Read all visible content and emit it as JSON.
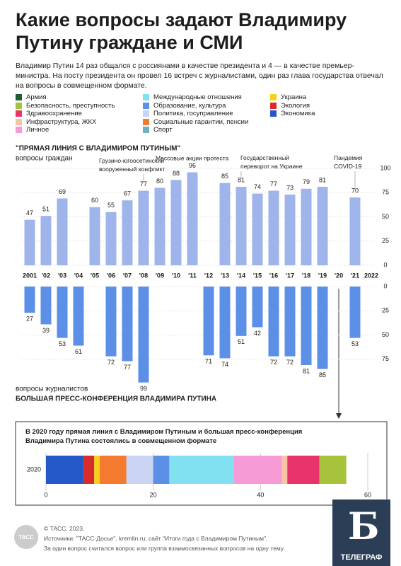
{
  "header": {
    "title": "Какие вопросы задают Владимиру Путину граждане и СМИ",
    "intro": "Владимир Путин 14 раз общался с россиянами в качестве президента и 4 — в качестве премьер-министра. На посту президента он провел 16 встреч с журналистами, один раз глава государства отвечал на вопросы в совмещенном формате."
  },
  "legend": [
    {
      "label": "Армия",
      "color": "#1b5e32"
    },
    {
      "label": "Безопасность, преступность",
      "color": "#a6c33b"
    },
    {
      "label": "Здравоохранение",
      "color": "#e8336b"
    },
    {
      "label": "Инфраструктура, ЖКХ",
      "color": "#f8c4a6"
    },
    {
      "label": "Личное",
      "color": "#f79bd6"
    },
    {
      "label": "Международные отношения",
      "color": "#82e1f0"
    },
    {
      "label": "Образование, культура",
      "color": "#5c8fe6"
    },
    {
      "label": "Политика, госуправление",
      "color": "#cbd4f3"
    },
    {
      "label": "Социальные гарантии, пенсии",
      "color": "#f47a30"
    },
    {
      "label": "Спорт",
      "color": "#6cb3c2"
    },
    {
      "label": "Украина",
      "color": "#f5d21a"
    },
    {
      "label": "Экология",
      "color": "#d72c2c"
    },
    {
      "label": "Экономика",
      "color": "#2458c8"
    }
  ],
  "chart_data": [
    {
      "type": "bar",
      "title": "\"ПРЯМАЯ ЛИНИЯ С ВЛАДИМИРОМ ПУТИНЫМ\"",
      "subtitle": "вопросы граждан",
      "categories": [
        "2001",
        "'02",
        "'03",
        "'04",
        "'05",
        "'06",
        "'07",
        "'08",
        "'09",
        "'10",
        "'11",
        "'12",
        "'13",
        "'14",
        "'15",
        "'16",
        "'17",
        "'18",
        "'19",
        "'20",
        "'21",
        "2022"
      ],
      "values": [
        47,
        51,
        69,
        null,
        60,
        55,
        67,
        77,
        80,
        88,
        96,
        null,
        85,
        81,
        74,
        77,
        73,
        79,
        81,
        null,
        70,
        null
      ],
      "color": "#9fb4ea",
      "ylim": [
        0,
        100
      ],
      "yticks": [
        0,
        25,
        50,
        75,
        100
      ],
      "annotations": [
        "Грузино-югоосетинский вооруженный конфликт",
        "Массовые акции протеста",
        "Государственный переворот на Украине",
        "Пандемия COVID-19"
      ]
    },
    {
      "type": "bar",
      "title": "БОЛЬШАЯ ПРЕСС-КОНФЕРЕНЦИЯ ВЛАДИМИРА ПУТИНА",
      "subtitle": "вопросы журналистов",
      "values": [
        27,
        39,
        53,
        61,
        null,
        72,
        77,
        99,
        null,
        null,
        null,
        71,
        74,
        51,
        42,
        72,
        72,
        81,
        85,
        null,
        53,
        null
      ],
      "color": "#5c8fe6",
      "ylim": [
        0,
        100
      ],
      "yticks": [
        0,
        25,
        50,
        75
      ]
    },
    {
      "type": "stacked-bar-h",
      "title": "В 2020 году прямая линия с Владимиром Путиным и большая пресс-конференция Владимира Путина состоялись в совмещенном формате",
      "categories": [
        "2020"
      ],
      "xlim": [
        0,
        60
      ],
      "xticks": [
        0,
        20,
        40,
        60
      ],
      "series": [
        {
          "color": "#2458c8",
          "values": [
            7
          ]
        },
        {
          "color": "#d72c2c",
          "values": [
            2
          ]
        },
        {
          "color": "#f5d21a",
          "values": [
            1
          ]
        },
        {
          "color": "#f47a30",
          "values": [
            5
          ]
        },
        {
          "color": "#cbd4f3",
          "values": [
            5
          ]
        },
        {
          "color": "#5c8fe6",
          "values": [
            3
          ]
        },
        {
          "color": "#82e1f0",
          "values": [
            12
          ]
        },
        {
          "color": "#f79bd6",
          "values": [
            9
          ]
        },
        {
          "color": "#f8c4a6",
          "values": [
            1
          ]
        },
        {
          "color": "#e8336b",
          "values": [
            6
          ]
        },
        {
          "color": "#a6c33b",
          "values": [
            5
          ]
        }
      ]
    }
  ],
  "footer": {
    "lines": [
      "© ТАСС, 2023.",
      "Источники: \"ТАСС-Досье\", kremlin.ru, сайт \"Итоги года с Владимиром Путиным\".",
      "За один вопрос считался вопрос или группа взаимосвязанных вопросов на одну тему."
    ],
    "tass": "ТАСС",
    "brand": "ТЕЛЕГРАФ"
  }
}
